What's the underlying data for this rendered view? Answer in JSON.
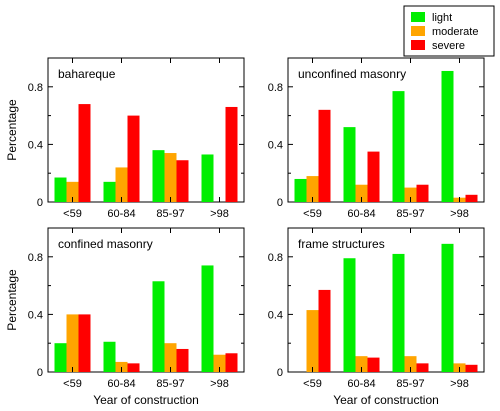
{
  "legend": [
    {
      "name": "light",
      "color": "#00ee00"
    },
    {
      "name": "moderate",
      "color": "#ffa500"
    },
    {
      "name": "severe",
      "color": "#ff0000"
    }
  ],
  "chart_data": [
    {
      "type": "bar",
      "title": "bahareque",
      "categories": [
        "<59",
        "60-84",
        "85-97",
        ">98"
      ],
      "series": [
        {
          "name": "light",
          "values": [
            0.17,
            0.14,
            0.36,
            0.33
          ]
        },
        {
          "name": "moderate",
          "values": [
            0.14,
            0.24,
            0.34,
            0.0
          ]
        },
        {
          "name": "severe",
          "values": [
            0.68,
            0.6,
            0.29,
            0.66
          ]
        }
      ],
      "ylabel": "Percentage",
      "xlabel": "",
      "ylim": [
        0,
        1.0
      ],
      "yticks": [
        0,
        0.4,
        0.8
      ],
      "ytick_labels": [
        "0",
        "0.4",
        "0.8"
      ]
    },
    {
      "type": "bar",
      "title": "unconfined masonry",
      "categories": [
        "<59",
        "60-84",
        "85-97",
        ">98"
      ],
      "series": [
        {
          "name": "light",
          "values": [
            0.16,
            0.52,
            0.77,
            0.91
          ]
        },
        {
          "name": "moderate",
          "values": [
            0.18,
            0.12,
            0.1,
            0.03
          ]
        },
        {
          "name": "severe",
          "values": [
            0.64,
            0.35,
            0.12,
            0.05
          ]
        }
      ],
      "ylabel": "",
      "xlabel": "",
      "ylim": [
        0,
        1.0
      ],
      "yticks": [
        0,
        0.4,
        0.8
      ],
      "ytick_labels": [
        "0",
        "0.4",
        "0.8"
      ]
    },
    {
      "type": "bar",
      "title": "confined masonry",
      "categories": [
        "<59",
        "60-84",
        "85-97",
        ">98"
      ],
      "series": [
        {
          "name": "light",
          "values": [
            0.2,
            0.21,
            0.63,
            0.74
          ]
        },
        {
          "name": "moderate",
          "values": [
            0.4,
            0.07,
            0.2,
            0.12
          ]
        },
        {
          "name": "severe",
          "values": [
            0.4,
            0.06,
            0.16,
            0.13
          ]
        }
      ],
      "ylabel": "Percentage",
      "xlabel": "Year of construction",
      "ylim": [
        0,
        1.0
      ],
      "yticks": [
        0,
        0.4,
        0.8
      ],
      "ytick_labels": [
        "0",
        "0.4",
        "0.8"
      ]
    },
    {
      "type": "bar",
      "title": "frame structures",
      "categories": [
        "<59",
        "60-84",
        "85-97",
        ">98"
      ],
      "series": [
        {
          "name": "light",
          "values": [
            0.0,
            0.79,
            0.82,
            0.89
          ]
        },
        {
          "name": "moderate",
          "values": [
            0.43,
            0.11,
            0.11,
            0.06
          ]
        },
        {
          "name": "severe",
          "values": [
            0.57,
            0.1,
            0.06,
            0.05
          ]
        }
      ],
      "ylabel": "",
      "xlabel": "Year of construction",
      "ylim": [
        0,
        1.0
      ],
      "yticks": [
        0,
        0.4,
        0.8
      ],
      "ytick_labels": [
        "0",
        "0.4",
        "0.8"
      ]
    }
  ]
}
